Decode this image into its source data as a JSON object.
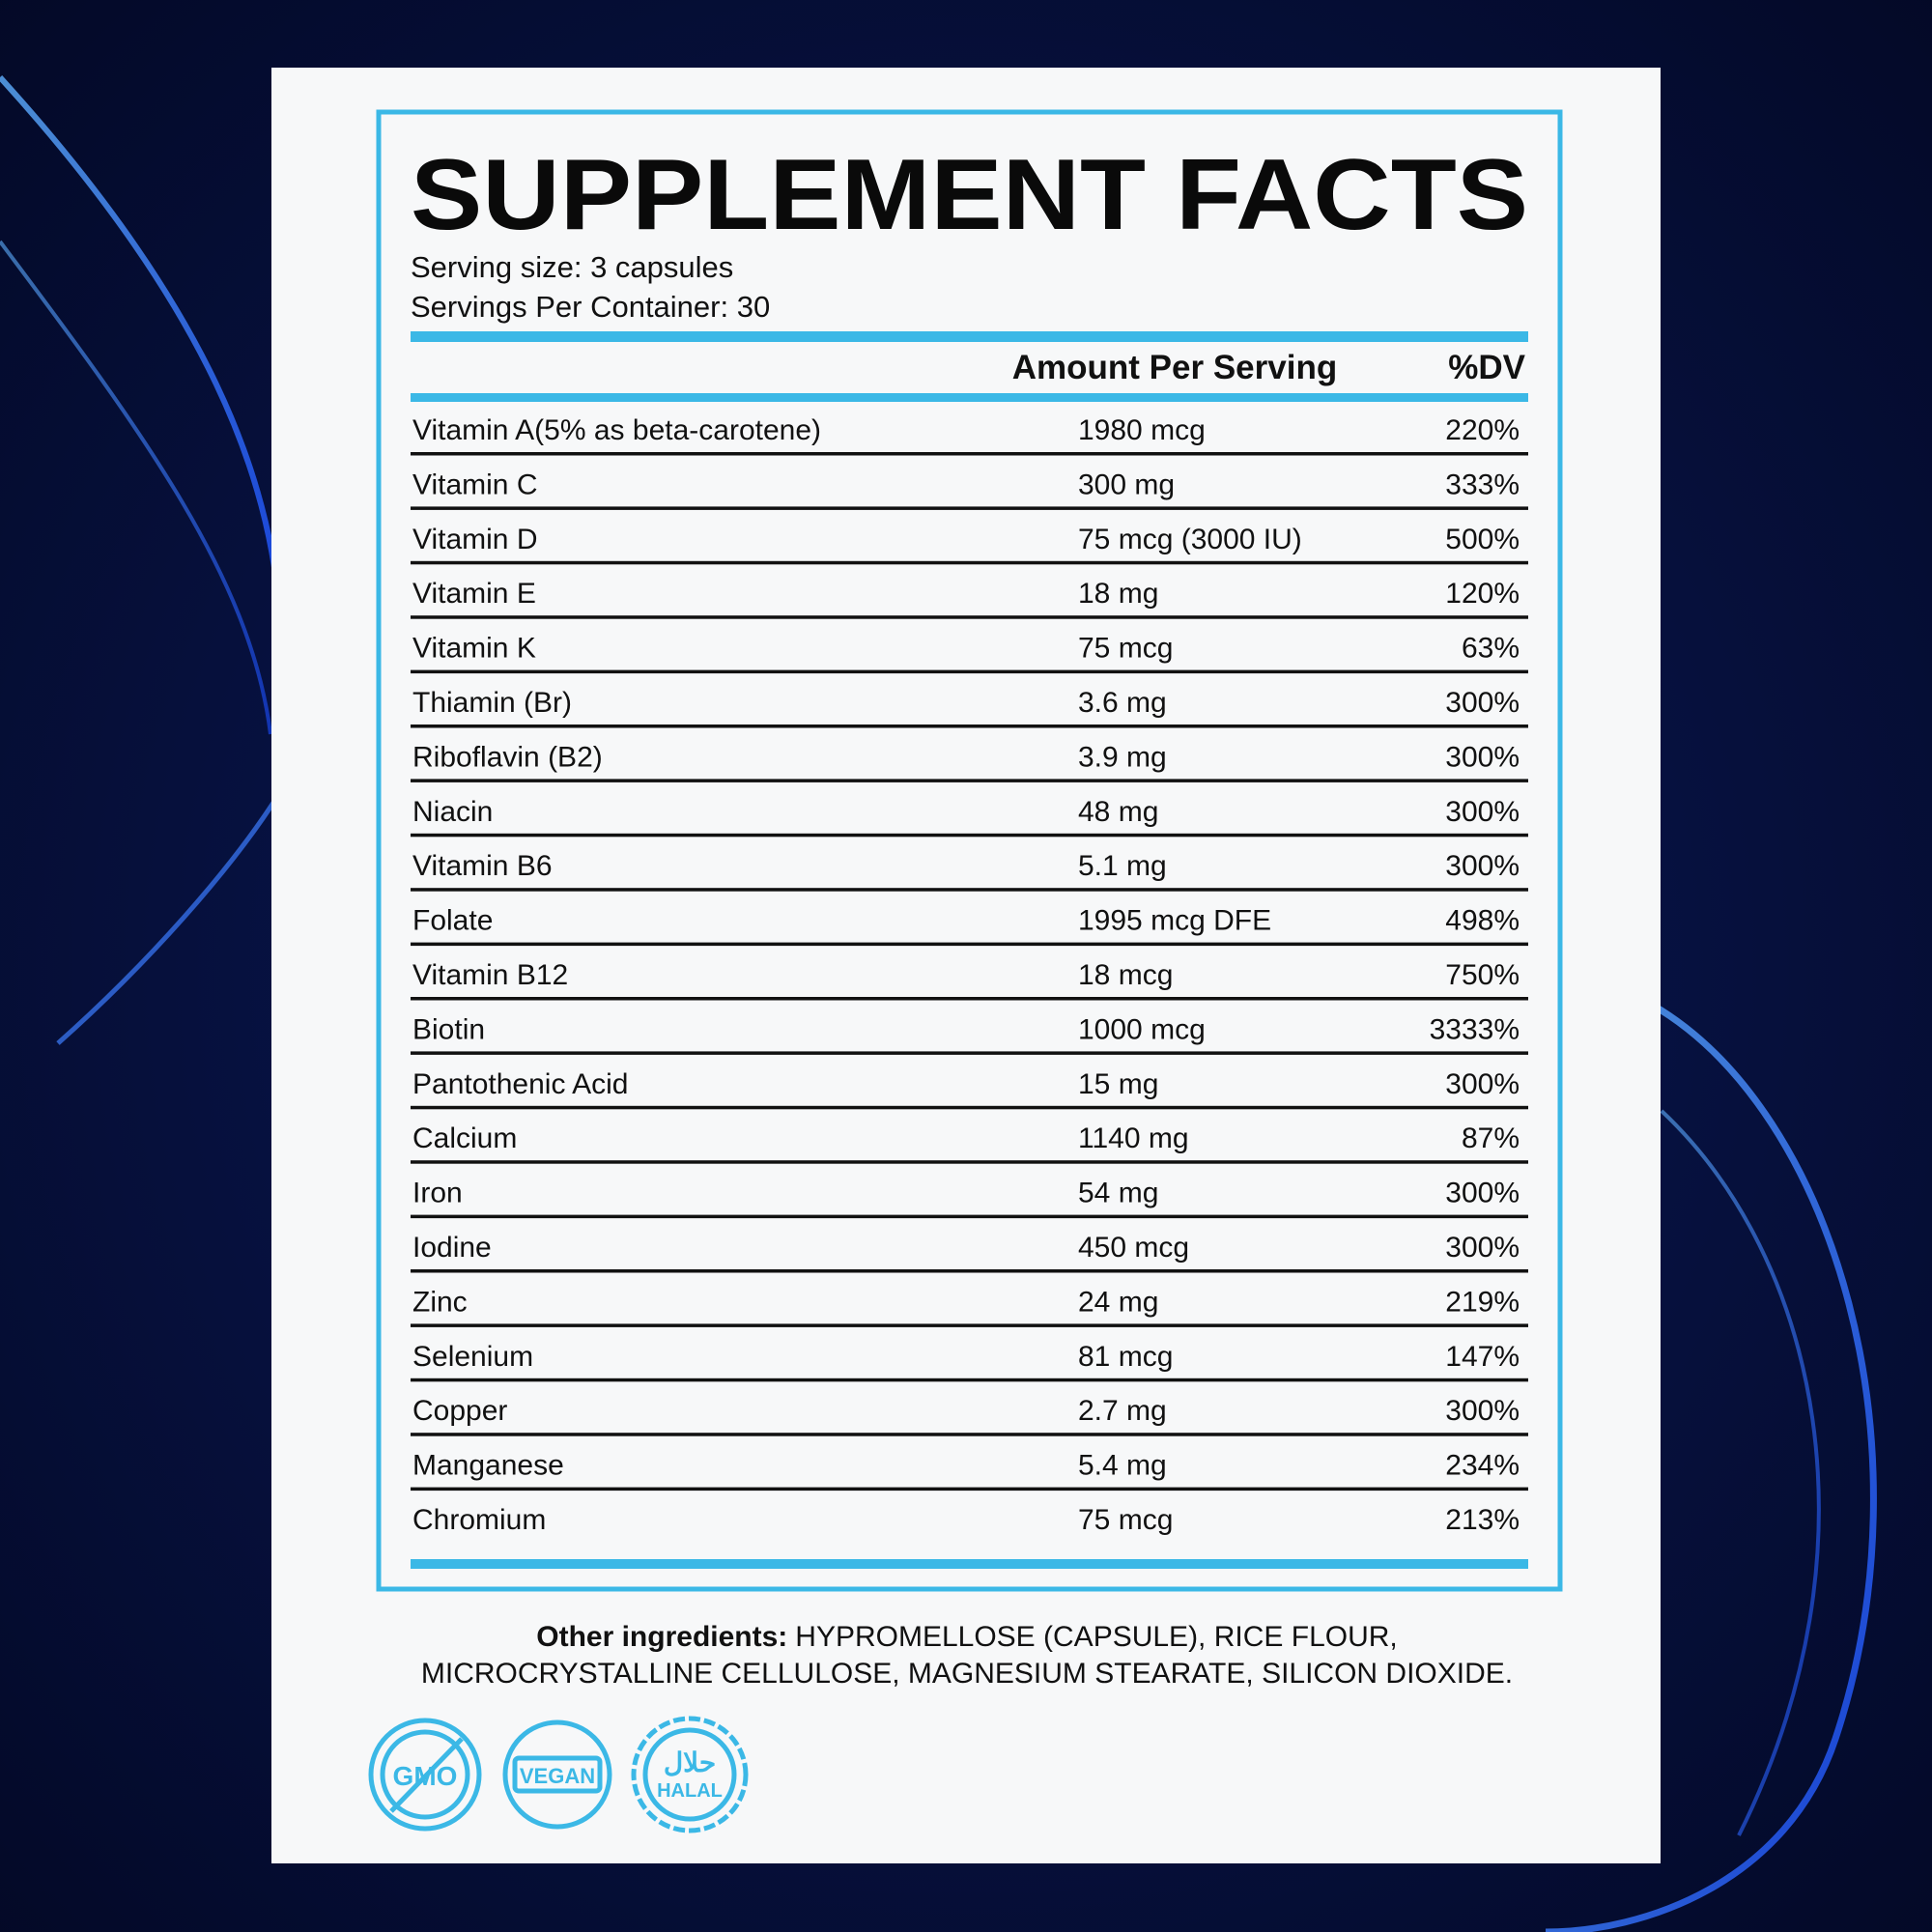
{
  "header": {
    "title": "SUPPLEMENT FACTS",
    "serving_size": "Serving size: 3 capsules",
    "servings_per_container": "Servings Per Container: 30"
  },
  "table": {
    "columns": [
      "Amount Per Serving",
      "%DV"
    ],
    "rows": [
      [
        "Vitamin A(5% as beta-carotene)",
        "1980 mcg",
        "220%"
      ],
      [
        "Vitamin C",
        "300 mg",
        "333%"
      ],
      [
        "Vitamin D",
        "75 mcg (3000 IU)",
        "500%"
      ],
      [
        "Vitamin E",
        "18 mg",
        "120%"
      ],
      [
        "Vitamin K",
        "75 mcg",
        "63%"
      ],
      [
        "Thiamin (Br)",
        "3.6 mg",
        "300%"
      ],
      [
        "Riboflavin (B2)",
        "3.9 mg",
        "300%"
      ],
      [
        "Niacin",
        "48 mg",
        "300%"
      ],
      [
        "Vitamin B6",
        "5.1 mg",
        "300%"
      ],
      [
        "Folate",
        "1995 mcg DFE",
        "498%"
      ],
      [
        "Vitamin B12",
        "18 mcg",
        "750%"
      ],
      [
        "Biotin",
        "1000 mcg",
        "3333%"
      ],
      [
        "Pantothenic Acid",
        "15 mg",
        "300%"
      ],
      [
        "Calcium",
        "1140 mg",
        "87%"
      ],
      [
        "Iron",
        "54 mg",
        "300%"
      ],
      [
        "Iodine",
        "450 mcg",
        "300%"
      ],
      [
        "Zinc",
        "24 mg",
        "219%"
      ],
      [
        "Selenium",
        "81 mcg",
        "147%"
      ],
      [
        "Copper",
        "2.7 mg",
        "300%"
      ],
      [
        "Manganese",
        "5.4 mg",
        "234%"
      ],
      [
        "Chromium",
        "75 mcg",
        "213%"
      ]
    ]
  },
  "other_ingredients": {
    "label": "Other ingredients:",
    "line1": "HYPROMELLOSE (CAPSULE), RICE FLOUR,",
    "line2": "MICROCRYSTALLINE CELLULOSE, MAGNESIUM STEARATE, SILICON DIOXIDE."
  },
  "badges": [
    "GMO",
    "VEGAN",
    "HALAL",
    "حلال"
  ]
}
